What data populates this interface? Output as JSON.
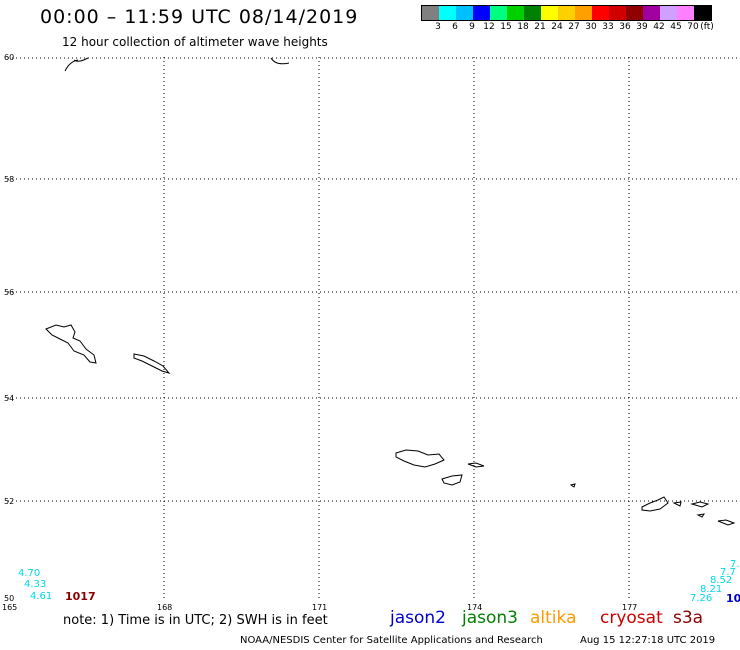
{
  "header": {
    "title": "00:00 – 11:59 UTC 08/14/2019",
    "subtitle": "12 hour collection of altimeter wave heights"
  },
  "legend": {
    "colors": [
      "#808080",
      "#00ffff",
      "#00bfff",
      "#0000ff",
      "#00ff80",
      "#00d000",
      "#008000",
      "#ffff00",
      "#ffd000",
      "#ffa000",
      "#ff0000",
      "#d00000",
      "#900000",
      "#a000a0",
      "#d0a0ff",
      "#ff80ff",
      "#000000"
    ],
    "labels": [
      "3",
      "6",
      "9",
      "12",
      "15",
      "18",
      "21",
      "24",
      "27",
      "30",
      "33",
      "36",
      "39",
      "42",
      "45",
      "70",
      "(ft)"
    ]
  },
  "map": {
    "lon_labels": [
      "165",
      "168",
      "171",
      "174",
      "177"
    ],
    "lat_labels": [
      "60",
      "58",
      "56",
      "54",
      "52",
      "50"
    ]
  },
  "observations": {
    "left_swh": [
      "4.70",
      "4.33",
      "4.61"
    ],
    "pressure": "1017",
    "right_swh": [
      "7.",
      "7.7",
      "8.52",
      "8.21",
      "7.26"
    ],
    "right_partial": "10"
  },
  "footer": {
    "note": "note: 1) Time is in UTC; 2) SWH is in feet",
    "satellites": [
      {
        "name": "jason2",
        "color": "#0000cc"
      },
      {
        "name": "jason3",
        "color": "#008000"
      },
      {
        "name": "altika",
        "color": "#ff9900"
      },
      {
        "name": "cryosat",
        "color": "#cc0000"
      },
      {
        "name": "s3a",
        "color": "#8b0000"
      }
    ],
    "credit": "NOAA/NESDIS Center for Satellite Applications and Research",
    "timestamp": "Aug 15 12:27:18 UTC 2019"
  }
}
